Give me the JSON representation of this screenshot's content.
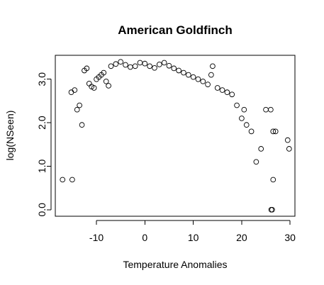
{
  "chart_data": {
    "type": "scatter",
    "title": "American Goldfinch",
    "xlabel": "Temperature Anomalies",
    "ylabel": "log(NSeen)",
    "xlim": [
      -18.5,
      31.0
    ],
    "ylim": [
      -0.15,
      3.55
    ],
    "xticks": [
      -10,
      0,
      10,
      20,
      30
    ],
    "yticks": [
      0.0,
      1.0,
      2.0,
      3.0
    ],
    "xtick_labels": [
      "-10",
      "0",
      "10",
      "20",
      "30"
    ],
    "ytick_labels": [
      "0.0",
      "1.0",
      "2.0",
      "3.0"
    ],
    "grid": false,
    "legend": "none",
    "marker": "open-circle",
    "point_color": "#000000",
    "series": [
      {
        "values": [
          {
            "x": -17,
            "y": 0.69
          },
          {
            "x": -15,
            "y": 0.69
          },
          {
            "x": -14.5,
            "y": 2.75
          },
          {
            "x": -15.2,
            "y": 2.7
          },
          {
            "x": -14,
            "y": 2.3
          },
          {
            "x": -13.5,
            "y": 2.4
          },
          {
            "x": -13,
            "y": 1.95
          },
          {
            "x": -12.5,
            "y": 3.2
          },
          {
            "x": -12,
            "y": 3.25
          },
          {
            "x": -11.5,
            "y": 2.9
          },
          {
            "x": -11,
            "y": 2.83
          },
          {
            "x": -10.5,
            "y": 2.8
          },
          {
            "x": -10,
            "y": 3.0
          },
          {
            "x": -9.5,
            "y": 3.05
          },
          {
            "x": -9,
            "y": 3.1
          },
          {
            "x": -8.5,
            "y": 3.15
          },
          {
            "x": -8,
            "y": 2.95
          },
          {
            "x": -7.5,
            "y": 2.85
          },
          {
            "x": -7,
            "y": 3.3
          },
          {
            "x": -6,
            "y": 3.35
          },
          {
            "x": -5,
            "y": 3.4
          },
          {
            "x": -4,
            "y": 3.33
          },
          {
            "x": -3,
            "y": 3.28
          },
          {
            "x": -2,
            "y": 3.3
          },
          {
            "x": -1,
            "y": 3.38
          },
          {
            "x": 0,
            "y": 3.36
          },
          {
            "x": 1,
            "y": 3.3
          },
          {
            "x": 2,
            "y": 3.26
          },
          {
            "x": 3,
            "y": 3.34
          },
          {
            "x": 4,
            "y": 3.38
          },
          {
            "x": 5,
            "y": 3.31
          },
          {
            "x": 6,
            "y": 3.25
          },
          {
            "x": 7,
            "y": 3.2
          },
          {
            "x": 8,
            "y": 3.15
          },
          {
            "x": 9,
            "y": 3.1
          },
          {
            "x": 10,
            "y": 3.05
          },
          {
            "x": 11,
            "y": 3.0
          },
          {
            "x": 12,
            "y": 2.95
          },
          {
            "x": 13,
            "y": 2.88
          },
          {
            "x": 14,
            "y": 3.3
          },
          {
            "x": 13.7,
            "y": 3.1
          },
          {
            "x": 15,
            "y": 2.8
          },
          {
            "x": 16,
            "y": 2.75
          },
          {
            "x": 17,
            "y": 2.7
          },
          {
            "x": 18,
            "y": 2.65
          },
          {
            "x": 19,
            "y": 2.4
          },
          {
            "x": 20,
            "y": 2.1
          },
          {
            "x": 20.5,
            "y": 2.3
          },
          {
            "x": 21,
            "y": 1.95
          },
          {
            "x": 22,
            "y": 1.8
          },
          {
            "x": 23,
            "y": 1.1
          },
          {
            "x": 24,
            "y": 1.4
          },
          {
            "x": 25,
            "y": 2.3
          },
          {
            "x": 26,
            "y": 2.3
          },
          {
            "x": 26.5,
            "y": 1.8
          },
          {
            "x": 27,
            "y": 1.8
          },
          {
            "x": 29.5,
            "y": 1.6
          },
          {
            "x": 29.8,
            "y": 1.4
          },
          {
            "x": 26.5,
            "y": 0.69
          },
          {
            "x": 26.3,
            "y": 0.0
          },
          {
            "x": 26.1,
            "y": 0.0
          }
        ]
      }
    ]
  }
}
